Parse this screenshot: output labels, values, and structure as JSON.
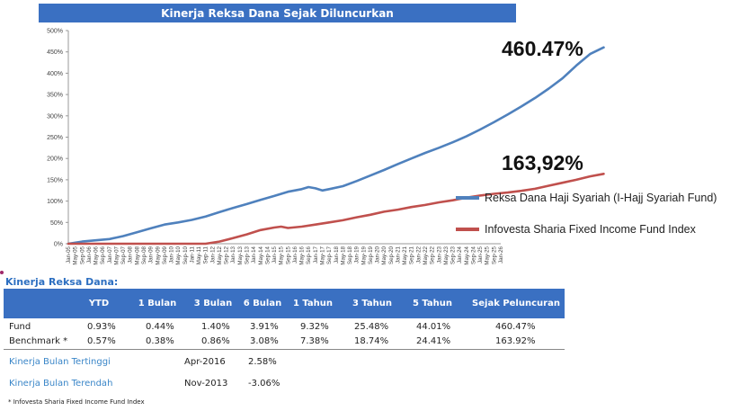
{
  "chart_data": {
    "type": "line",
    "title": "Kinerja Reksa Dana Sejak Diluncurkan",
    "ylim": [
      0,
      500
    ],
    "y_ticks": [
      "0%",
      "50%",
      "100%",
      "150%",
      "200%",
      "250%",
      "300%",
      "350%",
      "400%",
      "450%",
      "500%"
    ],
    "x_ticks": [
      "Jan-05",
      "May-05",
      "Sep-05",
      "Jan-06",
      "May-06",
      "Sep-06",
      "Jan-07",
      "May-07",
      "Sep-07",
      "Jan-08",
      "May-08",
      "Sep-08",
      "Jan-09",
      "May-09",
      "Sep-09",
      "Jan-10",
      "May-10",
      "Sep-10",
      "Jan-11",
      "May-11",
      "Sep-11",
      "Jan-12",
      "May-12",
      "Sep-12",
      "Jan-13",
      "May-13",
      "Sep-13",
      "Jan-14",
      "May-14",
      "Sep-14",
      "Jan-15",
      "May-15",
      "Sep-15",
      "Jan-16",
      "May-16",
      "Sep-16",
      "Jan-17",
      "May-17",
      "Sep-17",
      "Jan-18",
      "May-18",
      "Sep-18",
      "Jan-19",
      "May-19",
      "Sep-19",
      "Jan-20",
      "May-20",
      "Sep-20",
      "Jan-21",
      "May-21",
      "Sep-21",
      "Jan-22",
      "May-22",
      "Sep-22",
      "Jan-23",
      "May-23",
      "Sep-23",
      "Jan-24",
      "May-24",
      "Sep-24",
      "Jan-25",
      "May-25",
      "Sep-25",
      "Jan-26"
    ],
    "grid": false,
    "legend_position": "right",
    "series": [
      {
        "name": "Reksa Dana Haji Syariah (I-Hajj Syariah Fund)",
        "color": "#4f81bd",
        "end_label": "460.47%",
        "points": [
          [
            0,
            0
          ],
          [
            2,
            5
          ],
          [
            4,
            8
          ],
          [
            6,
            11
          ],
          [
            8,
            18
          ],
          [
            10,
            27
          ],
          [
            12,
            36
          ],
          [
            14,
            45
          ],
          [
            16,
            50
          ],
          [
            18,
            56
          ],
          [
            20,
            64
          ],
          [
            22,
            74
          ],
          [
            24,
            84
          ],
          [
            26,
            93
          ],
          [
            28,
            103
          ],
          [
            30,
            112
          ],
          [
            32,
            122
          ],
          [
            34,
            128
          ],
          [
            35,
            133
          ],
          [
            36,
            130
          ],
          [
            37,
            125
          ],
          [
            38,
            128
          ],
          [
            40,
            135
          ],
          [
            42,
            147
          ],
          [
            44,
            160
          ],
          [
            46,
            173
          ],
          [
            48,
            187
          ],
          [
            50,
            200
          ],
          [
            52,
            213
          ],
          [
            54,
            225
          ],
          [
            56,
            238
          ],
          [
            58,
            252
          ],
          [
            60,
            268
          ],
          [
            62,
            285
          ],
          [
            64,
            303
          ],
          [
            66,
            322
          ],
          [
            68,
            342
          ],
          [
            70,
            364
          ],
          [
            72,
            388
          ],
          [
            74,
            418
          ],
          [
            76,
            445
          ],
          [
            78,
            460.47
          ]
        ]
      },
      {
        "name": "Infovesta Sharia Fixed Income Fund Index",
        "color": "#c0504d",
        "end_label": "163,92%",
        "points": [
          [
            0,
            0
          ],
          [
            2,
            0
          ],
          [
            4,
            0
          ],
          [
            6,
            0
          ],
          [
            8,
            0
          ],
          [
            10,
            0
          ],
          [
            12,
            0
          ],
          [
            14,
            0
          ],
          [
            16,
            0
          ],
          [
            18,
            0
          ],
          [
            20,
            0
          ],
          [
            22,
            5
          ],
          [
            24,
            13
          ],
          [
            26,
            22
          ],
          [
            28,
            32
          ],
          [
            30,
            38
          ],
          [
            31,
            40
          ],
          [
            32,
            37
          ],
          [
            34,
            40
          ],
          [
            36,
            45
          ],
          [
            38,
            50
          ],
          [
            40,
            55
          ],
          [
            42,
            62
          ],
          [
            44,
            68
          ],
          [
            46,
            75
          ],
          [
            48,
            80
          ],
          [
            50,
            86
          ],
          [
            52,
            91
          ],
          [
            54,
            97
          ],
          [
            56,
            102
          ],
          [
            58,
            108
          ],
          [
            60,
            113
          ],
          [
            62,
            117
          ],
          [
            64,
            120
          ],
          [
            66,
            124
          ],
          [
            68,
            129
          ],
          [
            70,
            136
          ],
          [
            72,
            143
          ],
          [
            74,
            150
          ],
          [
            76,
            158
          ],
          [
            78,
            163.92
          ]
        ]
      }
    ]
  },
  "legend": {
    "fund_label": "Reksa Dana Haji Syariah (I-Hajj Syariah Fund)",
    "index_label": "Infovesta Sharia Fixed Income Fund Index"
  },
  "table": {
    "section_title": "Kinerja Reksa Dana:",
    "headers": [
      "YTD",
      "1 Bulan",
      "3 Bulan",
      "6 Bulan",
      "1 Tahun",
      "3 Tahun",
      "5 Tahun",
      "Sejak Peluncuran"
    ],
    "rows": [
      {
        "label": "Fund",
        "values": [
          "0.93%",
          "0.44%",
          "1.40%",
          "3.91%",
          "9.32%",
          "25.48%",
          "44.01%",
          "460.47%"
        ]
      },
      {
        "label": "Benchmark *",
        "values": [
          "0.57%",
          "0.38%",
          "0.86%",
          "3.08%",
          "7.38%",
          "18.74%",
          "24.41%",
          "163.92%"
        ]
      }
    ],
    "best": {
      "label": "Kinerja Bulan Tertinggi",
      "date": "Apr-2016",
      "value": "2.58%"
    },
    "worst": {
      "label": "Kinerja Bulan Terendah",
      "date": "Nov-2013",
      "value": "-3.06%"
    },
    "footnote": "* Infovesta Sharia Fixed Income Fund Index"
  }
}
